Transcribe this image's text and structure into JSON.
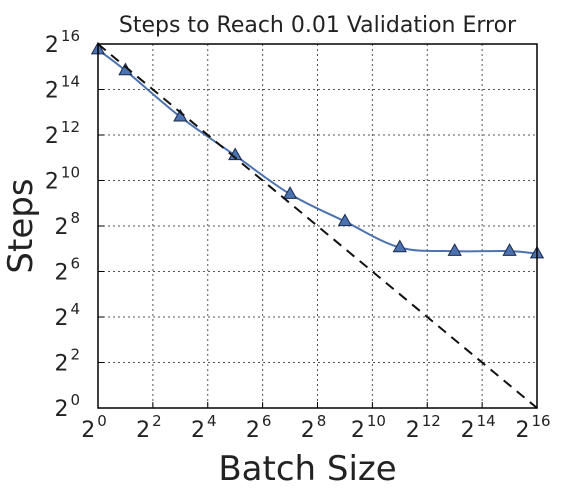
{
  "chart_data": {
    "type": "line",
    "title": "Steps to Reach 0.01 Validation Error",
    "xlabel": "Batch Size",
    "ylabel": "Steps",
    "x_scale": "log2",
    "y_scale": "log2",
    "xlim": [
      1,
      65536
    ],
    "ylim": [
      1,
      65536
    ],
    "x_ticks": [
      {
        "base": "2",
        "exp": "0"
      },
      {
        "base": "2",
        "exp": "2"
      },
      {
        "base": "2",
        "exp": "4"
      },
      {
        "base": "2",
        "exp": "6"
      },
      {
        "base": "2",
        "exp": "8"
      },
      {
        "base": "2",
        "exp": "10"
      },
      {
        "base": "2",
        "exp": "12"
      },
      {
        "base": "2",
        "exp": "14"
      },
      {
        "base": "2",
        "exp": "16"
      }
    ],
    "y_ticks": [
      {
        "base": "2",
        "exp": "0"
      },
      {
        "base": "2",
        "exp": "2"
      },
      {
        "base": "2",
        "exp": "4"
      },
      {
        "base": "2",
        "exp": "6"
      },
      {
        "base": "2",
        "exp": "8"
      },
      {
        "base": "2",
        "exp": "10"
      },
      {
        "base": "2",
        "exp": "12"
      },
      {
        "base": "2",
        "exp": "14"
      },
      {
        "base": "2",
        "exp": "16"
      }
    ],
    "grid": true,
    "series": [
      {
        "style": "solid",
        "marker": "triangle",
        "color": "#4c72b0",
        "x": [
          1,
          2,
          8,
          32,
          128,
          512,
          2048,
          8192,
          32768,
          65536
        ],
        "y": [
          55109,
          29205,
          7131,
          2195,
          676,
          294,
          133,
          119,
          119,
          110
        ]
      },
      {
        "style": "dashed",
        "color": "#111111",
        "x": [
          1,
          65536
        ],
        "y": [
          65536,
          1
        ]
      }
    ]
  }
}
